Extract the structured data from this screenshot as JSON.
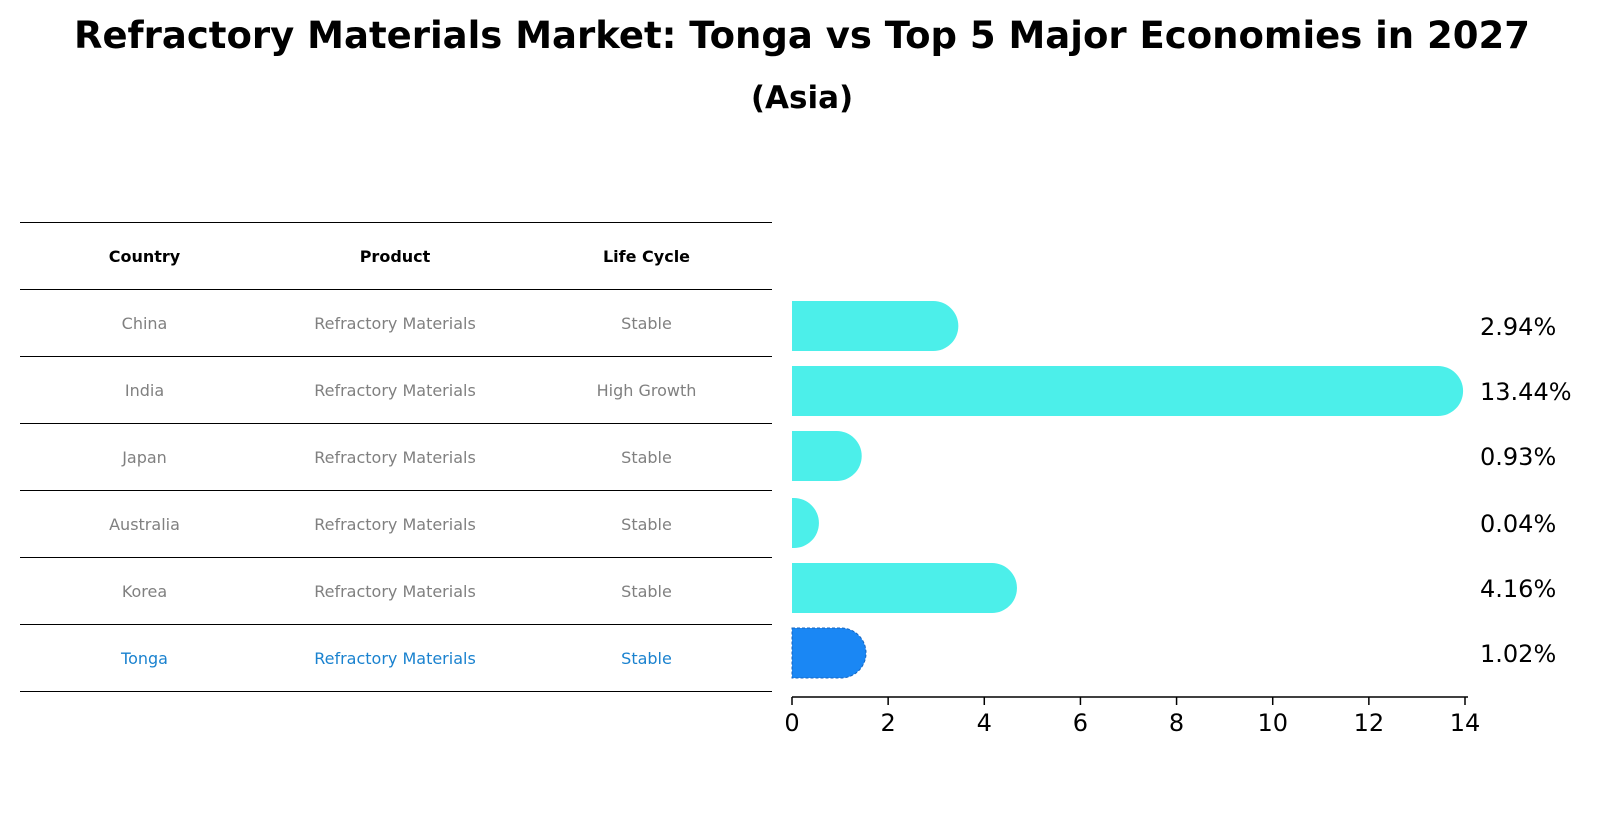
{
  "title": "Refractory Materials Market: Tonga vs Top 5 Major Economies in 2027",
  "subtitle": "(Asia)",
  "table": {
    "headers": [
      "Country",
      "Product",
      "Life Cycle"
    ],
    "rows": [
      [
        "China",
        "Refractory Materials",
        "Stable"
      ],
      [
        "India",
        "Refractory Materials",
        "High Growth"
      ],
      [
        "Japan",
        "Refractory Materials",
        "Stable"
      ],
      [
        "Australia",
        "Refractory Materials",
        "Stable"
      ],
      [
        "Korea",
        "Refractory Materials",
        "Stable"
      ],
      [
        "Tonga",
        "Refractory Materials",
        "Stable"
      ]
    ],
    "highlight_row": 5
  },
  "colors": {
    "bar": "#4cefea",
    "highlight": "#1a87f4",
    "highlight_text": "#1a82cf"
  },
  "chart_data": {
    "type": "bar",
    "orientation": "horizontal",
    "categories": [
      "China",
      "India",
      "Japan",
      "Australia",
      "Korea",
      "Tonga"
    ],
    "values": [
      2.94,
      13.44,
      0.93,
      0.04,
      4.16,
      1.02
    ],
    "labels": [
      "2.94%",
      "13.44%",
      "0.93%",
      "0.04%",
      "4.16%",
      "1.02%"
    ],
    "highlight": "Tonga",
    "xlim": [
      0,
      14
    ],
    "xticks": [
      0,
      2,
      4,
      6,
      8,
      10,
      12,
      14
    ],
    "xlabel": "",
    "ylabel": "",
    "grid": false
  }
}
